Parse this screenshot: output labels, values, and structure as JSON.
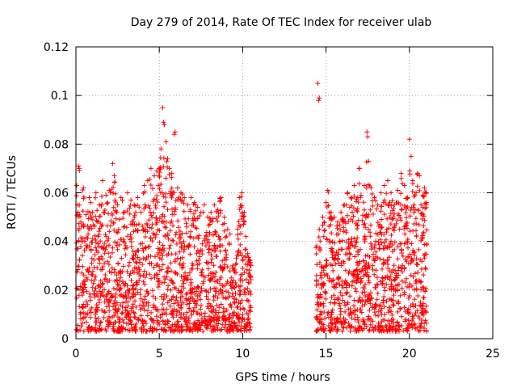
{
  "chart_data": {
    "type": "scatter",
    "title": "Day 279 of 2014, Rate Of TEC Index for receiver ulab",
    "xlabel": "GPS time / hours",
    "ylabel": "ROTI / TECUs",
    "xlim": [
      0,
      25
    ],
    "ylim": [
      0,
      0.12
    ],
    "x_ticks": [
      0,
      5,
      10,
      15,
      20,
      25
    ],
    "x_tick_labels": [
      "0",
      "5",
      "10",
      "15",
      "20",
      "25"
    ],
    "y_ticks": [
      0,
      0.02,
      0.04,
      0.06,
      0.08,
      0.1,
      0.12
    ],
    "y_tick_labels": [
      "0",
      "0.02",
      "0.04",
      "0.06",
      "0.08",
      "0.1",
      "0.12"
    ],
    "grid": true,
    "marker": "+",
    "color": "#ff0000",
    "data_gap_hours": [
      10.5,
      14.4
    ],
    "series": [
      {
        "name": "ROTI",
        "points": [
          [
            0.05,
            0.063
          ],
          [
            0.1,
            0.055
          ],
          [
            0.15,
            0.071
          ],
          [
            0.2,
            0.07
          ],
          [
            0.3,
            0.048
          ],
          [
            0.45,
            0.062
          ],
          [
            0.6,
            0.051
          ],
          [
            0.8,
            0.058
          ],
          [
            1.0,
            0.052
          ],
          [
            1.2,
            0.06
          ],
          [
            1.4,
            0.055
          ],
          [
            1.6,
            0.065
          ],
          [
            1.8,
            0.059
          ],
          [
            2.0,
            0.061
          ],
          [
            2.2,
            0.072
          ],
          [
            2.3,
            0.067
          ],
          [
            2.5,
            0.055
          ],
          [
            2.7,
            0.058
          ],
          [
            2.9,
            0.052
          ],
          [
            3.1,
            0.06
          ],
          [
            3.3,
            0.057
          ],
          [
            3.5,
            0.055
          ],
          [
            3.7,
            0.058
          ],
          [
            3.9,
            0.052
          ],
          [
            4.1,
            0.063
          ],
          [
            4.3,
            0.065
          ],
          [
            4.5,
            0.07
          ],
          [
            4.7,
            0.067
          ],
          [
            4.85,
            0.069
          ],
          [
            5.0,
            0.07
          ],
          [
            5.1,
            0.078
          ],
          [
            5.2,
            0.095
          ],
          [
            5.25,
            0.089
          ],
          [
            5.3,
            0.088
          ],
          [
            5.4,
            0.081
          ],
          [
            5.5,
            0.074
          ],
          [
            5.6,
            0.07
          ],
          [
            5.75,
            0.068
          ],
          [
            5.9,
            0.084
          ],
          [
            5.95,
            0.085
          ],
          [
            6.1,
            0.062
          ],
          [
            6.3,
            0.06
          ],
          [
            6.5,
            0.058
          ],
          [
            6.7,
            0.055
          ],
          [
            6.9,
            0.058
          ],
          [
            7.1,
            0.056
          ],
          [
            7.3,
            0.054
          ],
          [
            7.5,
            0.052
          ],
          [
            7.7,
            0.055
          ],
          [
            7.9,
            0.05
          ],
          [
            8.1,
            0.052
          ],
          [
            8.3,
            0.055
          ],
          [
            8.5,
            0.053
          ],
          [
            8.7,
            0.058
          ],
          [
            8.9,
            0.05
          ],
          [
            9.1,
            0.045
          ],
          [
            9.4,
            0.03
          ],
          [
            9.7,
            0.045
          ],
          [
            9.8,
            0.058
          ],
          [
            9.95,
            0.06
          ],
          [
            10.1,
            0.052
          ],
          [
            10.2,
            0.042
          ],
          [
            10.3,
            0.035
          ],
          [
            14.5,
            0.105
          ],
          [
            14.55,
            0.098
          ],
          [
            14.6,
            0.099
          ],
          [
            14.6,
            0.045
          ],
          [
            14.8,
            0.05
          ],
          [
            15.0,
            0.056
          ],
          [
            15.1,
            0.061
          ],
          [
            15.3,
            0.052
          ],
          [
            15.5,
            0.05
          ],
          [
            15.7,
            0.048
          ],
          [
            15.9,
            0.052
          ],
          [
            16.1,
            0.055
          ],
          [
            16.3,
            0.06
          ],
          [
            16.5,
            0.058
          ],
          [
            16.7,
            0.063
          ],
          [
            16.9,
            0.058
          ],
          [
            17.0,
            0.07
          ],
          [
            17.1,
            0.059
          ],
          [
            17.3,
            0.063
          ],
          [
            17.45,
            0.085
          ],
          [
            17.5,
            0.083
          ],
          [
            17.55,
            0.073
          ],
          [
            17.7,
            0.062
          ],
          [
            17.9,
            0.058
          ],
          [
            18.1,
            0.055
          ],
          [
            18.3,
            0.06
          ],
          [
            18.5,
            0.063
          ],
          [
            18.7,
            0.065
          ],
          [
            18.9,
            0.06
          ],
          [
            19.1,
            0.055
          ],
          [
            19.3,
            0.061
          ],
          [
            19.5,
            0.068
          ],
          [
            19.7,
            0.063
          ],
          [
            19.9,
            0.058
          ],
          [
            20.0,
            0.082
          ],
          [
            20.1,
            0.075
          ],
          [
            20.2,
            0.065
          ],
          [
            20.4,
            0.06
          ],
          [
            20.5,
            0.068
          ],
          [
            20.6,
            0.067
          ],
          [
            20.7,
            0.055
          ],
          [
            20.9,
            0.062
          ],
          [
            21.0,
            0.06
          ]
        ]
      }
    ]
  }
}
